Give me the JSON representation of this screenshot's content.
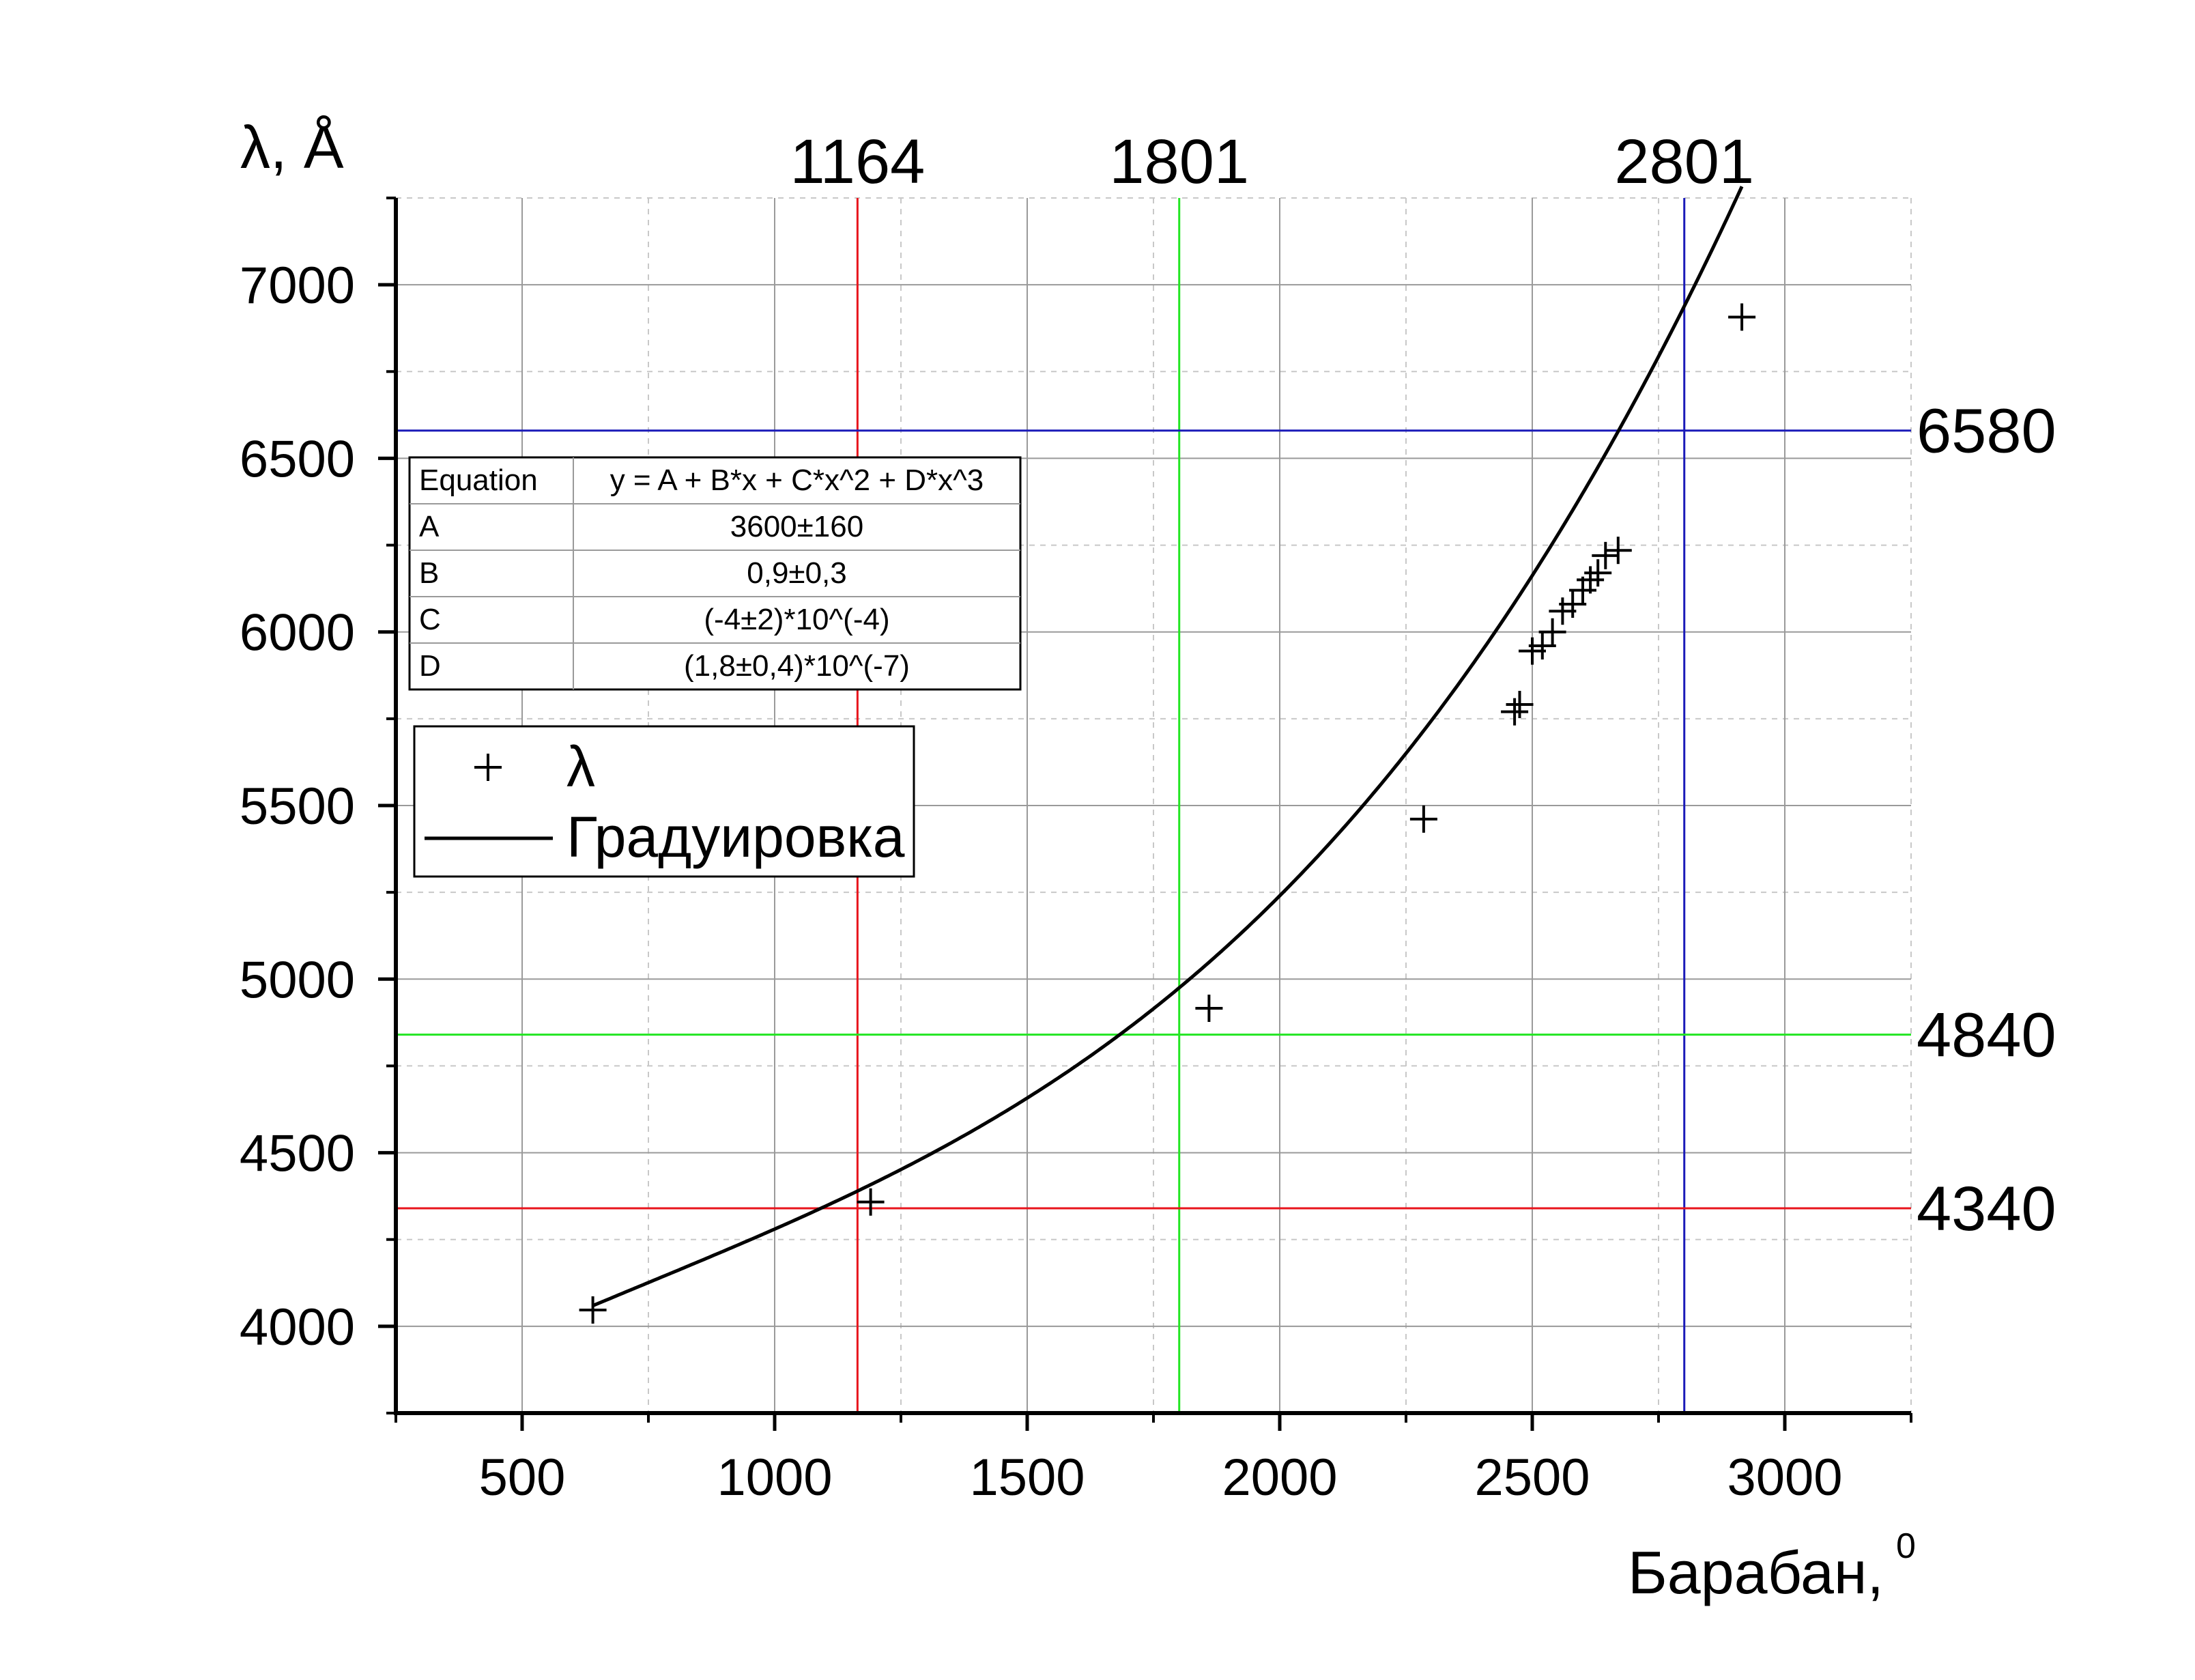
{
  "chart_data": {
    "type": "scatter",
    "ylabel": "λ, Å",
    "xlabel": "Барабан,",
    "xlabel_sup": "0",
    "xlim": [
      250,
      3250
    ],
    "ylim": [
      3750,
      7250
    ],
    "xticks": [
      500,
      1000,
      1500,
      2000,
      2500,
      3000
    ],
    "yticks": [
      4000,
      4500,
      5000,
      5500,
      6000,
      6500,
      7000
    ],
    "grid": true,
    "series": [
      {
        "name": "λ",
        "marker": "plus",
        "points": [
          [
            640,
            4047
          ],
          [
            1190,
            4358
          ],
          [
            1860,
            4916
          ],
          [
            2285,
            5461
          ],
          [
            2465,
            5770
          ],
          [
            2475,
            5791
          ],
          [
            2500,
            5945
          ],
          [
            2520,
            5960
          ],
          [
            2540,
            6000
          ],
          [
            2560,
            6060
          ],
          [
            2580,
            6080
          ],
          [
            2600,
            6120
          ],
          [
            2615,
            6150
          ],
          [
            2630,
            6170
          ],
          [
            2645,
            6220
          ],
          [
            2670,
            6235
          ],
          [
            2915,
            6907
          ]
        ]
      },
      {
        "name": "Градуировка",
        "type": "line",
        "x_range": [
          640,
          2915
        ],
        "coefficients": {
          "A": 3600,
          "B": 0.9,
          "C": -0.0004,
          "D": 1.8e-07
        }
      }
    ],
    "reference_lines": {
      "vertical": [
        {
          "value": 1164,
          "label": "1164",
          "color": "#e8141c"
        },
        {
          "value": 1801,
          "label": "1801",
          "color": "#22e622"
        },
        {
          "value": 2801,
          "label": "2801",
          "color": "#1a1ab8"
        }
      ],
      "horizontal": [
        {
          "value": 6580,
          "label": "6580",
          "color": "#1a1ab8"
        },
        {
          "value": 4840,
          "label": "4840",
          "color": "#22e622"
        },
        {
          "value": 4340,
          "label": "4340",
          "color": "#e8141c"
        }
      ]
    },
    "fit_table": {
      "header": [
        "Equation",
        "y = A + B*x + C*x^2 + D*x^3"
      ],
      "rows": [
        [
          "A",
          "3600±160"
        ],
        [
          "B",
          "0,9±0,3"
        ],
        [
          "C",
          "(-4±2)*10^(-4)"
        ],
        [
          "D",
          "(1,8±0,4)*10^(-7)"
        ]
      ]
    },
    "legend_position": "upper-left"
  }
}
